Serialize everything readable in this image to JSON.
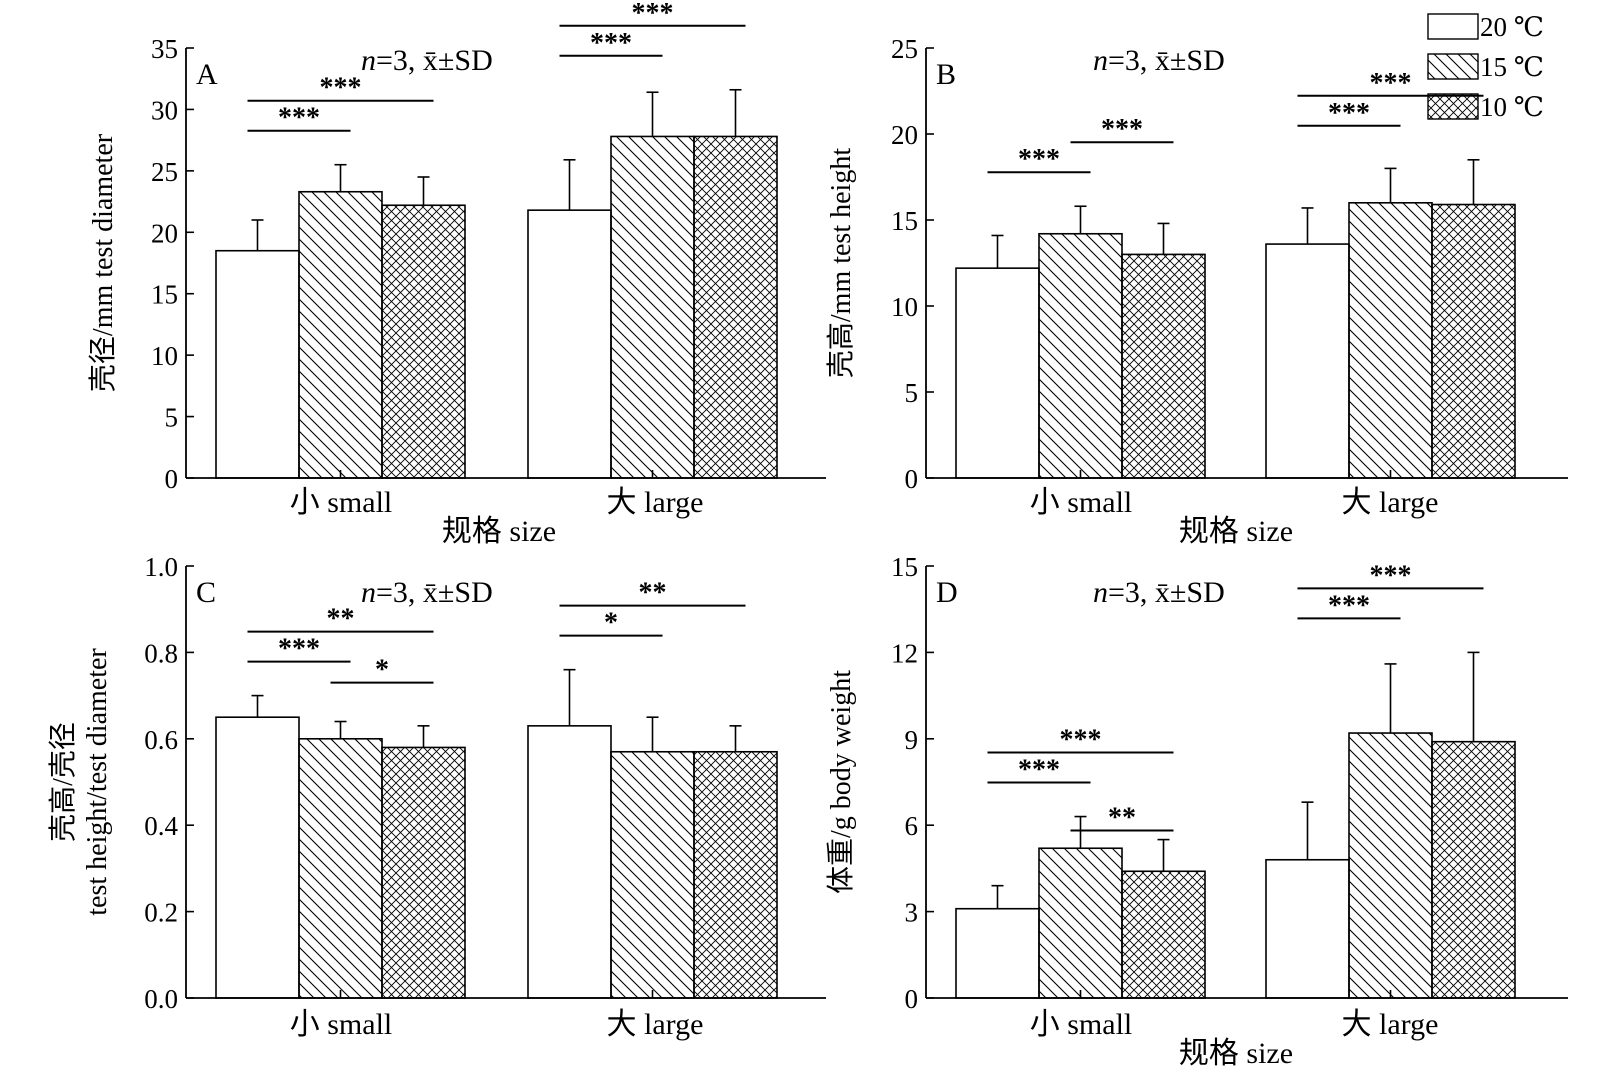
{
  "legend": {
    "entries": [
      {
        "label": "20 ℃",
        "pattern": "none"
      },
      {
        "label": "15 ℃",
        "pattern": "diagonal"
      },
      {
        "label": "10 ℃",
        "pattern": "crosshatch"
      }
    ],
    "placement": "top-right"
  },
  "chart_data": [
    {
      "panel": "A",
      "type": "bar",
      "annotation_n": "n",
      "annotation_rest": "=3, x̄±SD",
      "ylabel": "壳径/mm test diameter",
      "ylabel_line2": "",
      "xlabel": "规格 size",
      "ylim": [
        0,
        35
      ],
      "yticks": [
        0,
        5,
        10,
        15,
        20,
        25,
        30,
        35
      ],
      "categories": [
        "小 small",
        "大 large"
      ],
      "series": [
        {
          "name": "20 ℃",
          "values": [
            18.5,
            21.8
          ],
          "errors": [
            2.5,
            4.1
          ]
        },
        {
          "name": "15 ℃",
          "values": [
            23.3,
            27.8
          ],
          "errors": [
            2.2,
            3.6
          ]
        },
        {
          "name": "10 ℃",
          "values": [
            22.2,
            27.8
          ],
          "errors": [
            2.3,
            3.8
          ]
        }
      ],
      "significance": [
        {
          "category": 0,
          "from": 0,
          "to": 1,
          "label": "***",
          "level": 0
        },
        {
          "category": 0,
          "from": 0,
          "to": 2,
          "label": "***",
          "level": 1
        },
        {
          "category": 1,
          "from": 0,
          "to": 1,
          "label": "***",
          "level": 0
        },
        {
          "category": 1,
          "from": 0,
          "to": 2,
          "label": "***",
          "level": 1
        }
      ]
    },
    {
      "panel": "B",
      "type": "bar",
      "annotation_n": "n",
      "annotation_rest": "=3, x̄±SD",
      "ylabel": "壳高/mm test height",
      "ylabel_line2": "",
      "xlabel": "规格 size",
      "ylim": [
        0,
        25
      ],
      "yticks": [
        0,
        5,
        10,
        15,
        20,
        25
      ],
      "categories": [
        "小 small",
        "大 large"
      ],
      "series": [
        {
          "name": "20 ℃",
          "values": [
            12.2,
            13.6
          ],
          "errors": [
            1.9,
            2.1
          ]
        },
        {
          "name": "15 ℃",
          "values": [
            14.2,
            16.0
          ],
          "errors": [
            1.6,
            2.0
          ]
        },
        {
          "name": "10 ℃",
          "values": [
            13.0,
            15.9
          ],
          "errors": [
            1.8,
            2.6
          ]
        }
      ],
      "significance": [
        {
          "category": 0,
          "from": 0,
          "to": 1,
          "label": "***",
          "level": 0
        },
        {
          "category": 0,
          "from": 1,
          "to": 2,
          "label": "***",
          "level": 1
        },
        {
          "category": 1,
          "from": 0,
          "to": 1,
          "label": "***",
          "level": 0
        },
        {
          "category": 1,
          "from": 0,
          "to": 2,
          "label": "***",
          "level": 1
        }
      ]
    },
    {
      "panel": "C",
      "type": "bar",
      "annotation_n": "n",
      "annotation_rest": "=3, x̄±SD",
      "ylabel": "壳高/壳径",
      "ylabel_line2": "test height/test diameter",
      "xlabel": "",
      "ylim": [
        0,
        1.0
      ],
      "yticks": [
        0,
        0.2,
        0.4,
        0.6,
        0.8,
        1.0
      ],
      "categories": [
        "小 small",
        "大 large"
      ],
      "series": [
        {
          "name": "20 ℃",
          "values": [
            0.65,
            0.63
          ],
          "errors": [
            0.05,
            0.13
          ]
        },
        {
          "name": "15 ℃",
          "values": [
            0.6,
            0.57
          ],
          "errors": [
            0.04,
            0.08
          ]
        },
        {
          "name": "10 ℃",
          "values": [
            0.58,
            0.57
          ],
          "errors": [
            0.05,
            0.06
          ]
        }
      ],
      "significance": [
        {
          "category": 0,
          "from": 0,
          "to": 1,
          "label": "***",
          "level": 0
        },
        {
          "category": 0,
          "from": 0,
          "to": 2,
          "label": "**",
          "level": 1
        },
        {
          "category": 0,
          "from": 1,
          "to": 2,
          "label": "*",
          "level": -0.7
        },
        {
          "category": 1,
          "from": 0,
          "to": 1,
          "label": "*",
          "level": 0
        },
        {
          "category": 1,
          "from": 0,
          "to": 2,
          "label": "**",
          "level": 1
        }
      ]
    },
    {
      "panel": "D",
      "type": "bar",
      "annotation_n": "n",
      "annotation_rest": "=3, x̄±SD",
      "ylabel": "体重/g body weight",
      "ylabel_line2": "",
      "xlabel": "规格 size",
      "ylim": [
        0,
        15
      ],
      "yticks": [
        0,
        3,
        6,
        9,
        12,
        15
      ],
      "categories": [
        "小 small",
        "大 large"
      ],
      "series": [
        {
          "name": "20 ℃",
          "values": [
            3.1,
            4.8
          ],
          "errors": [
            0.8,
            2.0
          ]
        },
        {
          "name": "15 ℃",
          "values": [
            5.2,
            9.2
          ],
          "errors": [
            1.1,
            2.4
          ]
        },
        {
          "name": "10 ℃",
          "values": [
            4.4,
            8.9
          ],
          "errors": [
            1.1,
            3.1
          ]
        }
      ],
      "significance": [
        {
          "category": 0,
          "from": 0,
          "to": 1,
          "label": "***",
          "level": 0
        },
        {
          "category": 0,
          "from": 0,
          "to": 2,
          "label": "***",
          "level": 1
        },
        {
          "category": 0,
          "from": 1,
          "to": 2,
          "label": "**",
          "level": -1.6
        },
        {
          "category": 1,
          "from": 0,
          "to": 1,
          "label": "***",
          "level": 0
        },
        {
          "category": 1,
          "from": 0,
          "to": 2,
          "label": "***",
          "level": 1
        }
      ]
    }
  ]
}
